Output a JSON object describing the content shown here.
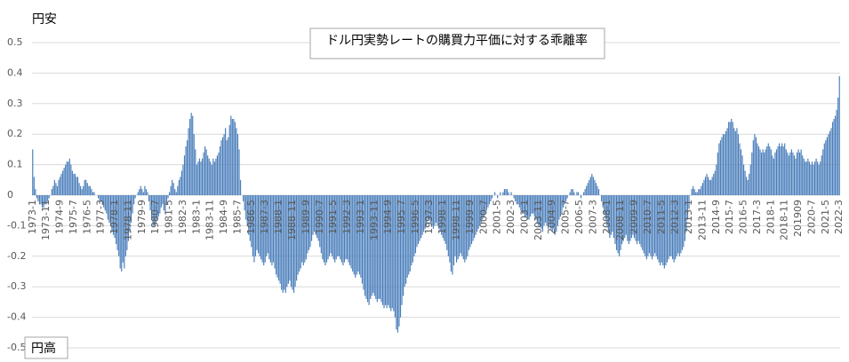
{
  "chart_data": {
    "type": "bar",
    "title": "ドル円実勢レートの購買力平価に対する乖離率",
    "annotations": [
      "円安",
      "円高"
    ],
    "color": "#4a7ebb",
    "ylim": [
      -0.5,
      0.5
    ],
    "yticks": [
      -0.5,
      -0.4,
      -0.3,
      -0.2,
      -0.1,
      0,
      0.1,
      0.2,
      0.3,
      0.4,
      0.5
    ],
    "grid": true,
    "categories": [
      "1973-1",
      null,
      null,
      null,
      null,
      null,
      null,
      null,
      null,
      null,
      "1973-11",
      null,
      null,
      null,
      null,
      null,
      null,
      null,
      null,
      null,
      "1974-9",
      null,
      null,
      null,
      null,
      null,
      null,
      null,
      null,
      null,
      "1975-7",
      null,
      null,
      null,
      null,
      null,
      null,
      null,
      null,
      null,
      "1976-5",
      null,
      null,
      null,
      null,
      null,
      null,
      null,
      null,
      null,
      "1977-3",
      null,
      null,
      null,
      null,
      null,
      null,
      null,
      null,
      null,
      "1978-1",
      null,
      null,
      null,
      null,
      null,
      null,
      null,
      null,
      null,
      "1978-11",
      null,
      null,
      null,
      null,
      null,
      null,
      null,
      null,
      null,
      "1979-9",
      null,
      null,
      null,
      null,
      null,
      null,
      null,
      null,
      null,
      "1980-7",
      null,
      null,
      null,
      null,
      null,
      null,
      null,
      null,
      null,
      "1981-5",
      null,
      null,
      null,
      null,
      null,
      null,
      null,
      null,
      null,
      "1982-3",
      null,
      null,
      null,
      null,
      null,
      null,
      null,
      null,
      null,
      "1983-1",
      null,
      null,
      null,
      null,
      null,
      null,
      null,
      null,
      null,
      "1983-11",
      null,
      null,
      null,
      null,
      null,
      null,
      null,
      null,
      null,
      "1984-9",
      null,
      null,
      null,
      null,
      null,
      null,
      null,
      null,
      null,
      "1985-7",
      null,
      null,
      null,
      null,
      null,
      null,
      null,
      null,
      null,
      "1986-5",
      null,
      null,
      null,
      null,
      null,
      null,
      null,
      null,
      null,
      "1987-3",
      null,
      null,
      null,
      null,
      null,
      null,
      null,
      null,
      null,
      "1988-1",
      null,
      null,
      null,
      null,
      null,
      null,
      null,
      null,
      null,
      "1988-11",
      null,
      null,
      null,
      null,
      null,
      null,
      null,
      null,
      null,
      "1989-9",
      null,
      null,
      null,
      null,
      null,
      null,
      null,
      null,
      null,
      "1990-7",
      null,
      null,
      null,
      null,
      null,
      null,
      null,
      null,
      null,
      "1991-5",
      null,
      null,
      null,
      null,
      null,
      null,
      null,
      null,
      null,
      "1992-3",
      null,
      null,
      null,
      null,
      null,
      null,
      null,
      null,
      null,
      "1993-1",
      null,
      null,
      null,
      null,
      null,
      null,
      null,
      null,
      null,
      "1993-11",
      null,
      null,
      null,
      null,
      null,
      null,
      null,
      null,
      null,
      "1994-9",
      null,
      null,
      null,
      null,
      null,
      null,
      null,
      null,
      null,
      "1995-7",
      null,
      null,
      null,
      null,
      null,
      null,
      null,
      null,
      null,
      "1996-5",
      null,
      null,
      null,
      null,
      null,
      null,
      null,
      null,
      null,
      "1997-3",
      null,
      null,
      null,
      null,
      null,
      null,
      null,
      null,
      null,
      "1998-1",
      null,
      null,
      null,
      null,
      null,
      null,
      null,
      null,
      null,
      "1998-11",
      null,
      null,
      null,
      null,
      null,
      null,
      null,
      null,
      null,
      "1999-9",
      null,
      null,
      null,
      null,
      null,
      null,
      null,
      null,
      null,
      "2000-7",
      null,
      null,
      null,
      null,
      null,
      null,
      null,
      null,
      null,
      "2001-5",
      null,
      null,
      null,
      null,
      null,
      null,
      null,
      null,
      null,
      "2002-3",
      null,
      null,
      null,
      null,
      null,
      null,
      null,
      null,
      null,
      "2003-1",
      null,
      null,
      null,
      null,
      null,
      null,
      null,
      null,
      null,
      "2003-11",
      null,
      null,
      null,
      null,
      null,
      null,
      null,
      null,
      null,
      "2004-9",
      null,
      null,
      null,
      null,
      null,
      null,
      null,
      null,
      null,
      "2005-7",
      null,
      null,
      null,
      null,
      null,
      null,
      null,
      null,
      null,
      "2006-5",
      null,
      null,
      null,
      null,
      null,
      null,
      null,
      null,
      null,
      "2007-3",
      null,
      null,
      null,
      null,
      null,
      null,
      null,
      null,
      null,
      "2008-1",
      null,
      null,
      null,
      null,
      null,
      null,
      null,
      null,
      null,
      "2008-11",
      null,
      null,
      null,
      null,
      null,
      null,
      null,
      null,
      null,
      "2009-9",
      null,
      null,
      null,
      null,
      null,
      null,
      null,
      null,
      null,
      "2010-7",
      null,
      null,
      null,
      null,
      null,
      null,
      null,
      null,
      null,
      "2011-5",
      null,
      null,
      null,
      null,
      null,
      null,
      null,
      null,
      null,
      "2012-3",
      null,
      null,
      null,
      null,
      null,
      null,
      null,
      null,
      null,
      "2013-1",
      null,
      null,
      null,
      null,
      null,
      null,
      null,
      null,
      null,
      "2013-11",
      null,
      null,
      null,
      null,
      null,
      null,
      null,
      null,
      null,
      "2014-9",
      null,
      null,
      null,
      null,
      null,
      null,
      null,
      null,
      null,
      "2015-7",
      null,
      null,
      null,
      null,
      null,
      null,
      null,
      null,
      null,
      "2016-5",
      null,
      null,
      null,
      null,
      null,
      null,
      null,
      null,
      null,
      "2017-3",
      null,
      null,
      null,
      null,
      null,
      null,
      null,
      null,
      null,
      "2018-1",
      null,
      null,
      null,
      null,
      null,
      null,
      null,
      null,
      null,
      "2018-11",
      null,
      null,
      null,
      null,
      null,
      null,
      null,
      null,
      null,
      "201909",
      null,
      null,
      null,
      null,
      null,
      null,
      null,
      null,
      null,
      "2020-7",
      null,
      null,
      null,
      null,
      null,
      null,
      null,
      null,
      null,
      "2021-5",
      null,
      null,
      null,
      null,
      null,
      null,
      null,
      null,
      null,
      "2022-3"
    ],
    "values": [
      0.15,
      0.06,
      0.02,
      -0.01,
      -0.02,
      -0.03,
      -0.03,
      -0.04,
      -0.04,
      -0.03,
      -0.03,
      -0.02,
      -0.01,
      0.0,
      0.02,
      0.03,
      0.05,
      0.04,
      0.03,
      0.05,
      0.06,
      0.07,
      0.08,
      0.09,
      0.1,
      0.11,
      0.11,
      0.12,
      0.1,
      0.08,
      0.07,
      0.07,
      0.06,
      0.06,
      0.04,
      0.03,
      0.02,
      0.03,
      0.05,
      0.05,
      0.04,
      0.03,
      0.03,
      0.02,
      0.01,
      0.01,
      0.0,
      0.0,
      -0.01,
      -0.02,
      -0.02,
      -0.03,
      -0.04,
      -0.05,
      -0.06,
      -0.08,
      -0.09,
      -0.1,
      -0.12,
      -0.13,
      -0.14,
      -0.16,
      -0.18,
      -0.2,
      -0.24,
      -0.25,
      -0.22,
      -0.24,
      -0.2,
      -0.18,
      -0.15,
      -0.12,
      -0.09,
      -0.06,
      -0.03,
      -0.01,
      0.0,
      0.01,
      0.02,
      0.03,
      0.02,
      0.01,
      0.03,
      0.02,
      0.01,
      -0.02,
      -0.05,
      -0.08,
      -0.1,
      -0.1,
      -0.09,
      -0.08,
      -0.07,
      -0.06,
      -0.04,
      -0.03,
      -0.05,
      -0.06,
      -0.03,
      -0.01,
      0.01,
      0.03,
      0.05,
      0.04,
      0.02,
      0.01,
      0.03,
      0.05,
      0.06,
      0.08,
      0.1,
      0.13,
      0.16,
      0.18,
      0.22,
      0.25,
      0.27,
      0.26,
      0.2,
      0.15,
      0.1,
      0.11,
      0.12,
      0.11,
      0.12,
      0.14,
      0.16,
      0.15,
      0.13,
      0.12,
      0.11,
      0.1,
      0.12,
      0.11,
      0.12,
      0.13,
      0.14,
      0.16,
      0.18,
      0.19,
      0.2,
      0.22,
      0.18,
      0.19,
      0.23,
      0.26,
      0.25,
      0.25,
      0.24,
      0.22,
      0.2,
      0.15,
      0.05,
      0.0,
      -0.02,
      -0.05,
      -0.08,
      -0.1,
      -0.13,
      -0.15,
      -0.17,
      -0.2,
      -0.22,
      -0.2,
      -0.18,
      -0.19,
      -0.2,
      -0.21,
      -0.22,
      -0.23,
      -0.22,
      -0.2,
      -0.19,
      -0.21,
      -0.22,
      -0.23,
      -0.22,
      -0.24,
      -0.26,
      -0.27,
      -0.28,
      -0.29,
      -0.31,
      -0.32,
      -0.31,
      -0.32,
      -0.3,
      -0.29,
      -0.28,
      -0.3,
      -0.31,
      -0.32,
      -0.3,
      -0.28,
      -0.26,
      -0.25,
      -0.24,
      -0.22,
      -0.23,
      -0.22,
      -0.21,
      -0.19,
      -0.18,
      -0.17,
      -0.15,
      -0.13,
      -0.12,
      -0.13,
      -0.14,
      -0.15,
      -0.17,
      -0.19,
      -0.21,
      -0.22,
      -0.23,
      -0.22,
      -0.21,
      -0.2,
      -0.19,
      -0.2,
      -0.21,
      -0.22,
      -0.21,
      -0.2,
      -0.2,
      -0.21,
      -0.22,
      -0.23,
      -0.22,
      -0.21,
      -0.21,
      -0.22,
      -0.23,
      -0.24,
      -0.25,
      -0.26,
      -0.27,
      -0.26,
      -0.25,
      -0.26,
      -0.27,
      -0.29,
      -0.31,
      -0.33,
      -0.34,
      -0.35,
      -0.36,
      -0.34,
      -0.33,
      -0.32,
      -0.33,
      -0.34,
      -0.35,
      -0.34,
      -0.34,
      -0.35,
      -0.36,
      -0.37,
      -0.36,
      -0.37,
      -0.36,
      -0.37,
      -0.38,
      -0.37,
      -0.38,
      -0.4,
      -0.44,
      -0.45,
      -0.43,
      -0.4,
      -0.36,
      -0.33,
      -0.3,
      -0.29,
      -0.27,
      -0.26,
      -0.25,
      -0.23,
      -0.22,
      -0.2,
      -0.19,
      -0.17,
      -0.16,
      -0.15,
      -0.14,
      -0.13,
      -0.12,
      -0.11,
      -0.1,
      -0.08,
      -0.08,
      -0.09,
      -0.1,
      -0.11,
      -0.1,
      -0.09,
      -0.1,
      -0.11,
      -0.12,
      -0.13,
      -0.14,
      -0.15,
      -0.16,
      -0.18,
      -0.2,
      -0.22,
      -0.25,
      -0.26,
      -0.23,
      -0.2,
      -0.22,
      -0.21,
      -0.2,
      -0.19,
      -0.2,
      -0.21,
      -0.22,
      -0.21,
      -0.2,
      -0.18,
      -0.17,
      -0.16,
      -0.15,
      -0.14,
      -0.13,
      -0.12,
      -0.11,
      -0.1,
      -0.09,
      -0.08,
      -0.07,
      -0.06,
      -0.05,
      -0.04,
      -0.03,
      -0.02,
      -0.01,
      0.0,
      0.01,
      0.0,
      -0.01,
      0.0,
      0.01,
      0.0,
      0.01,
      0.02,
      0.02,
      0.02,
      0.01,
      0.0,
      0.01,
      0.0,
      -0.01,
      -0.02,
      -0.03,
      -0.03,
      -0.04,
      -0.05,
      -0.06,
      -0.06,
      -0.07,
      -0.07,
      -0.08,
      -0.08,
      -0.07,
      -0.06,
      -0.06,
      -0.07,
      -0.08,
      -0.09,
      -0.1,
      -0.1,
      -0.11,
      -0.12,
      -0.1,
      -0.09,
      -0.1,
      -0.11,
      -0.1,
      -0.11,
      -0.12,
      -0.11,
      -0.13,
      -0.12,
      -0.1,
      -0.08,
      -0.07,
      -0.05,
      -0.04,
      -0.03,
      -0.02,
      -0.01,
      0.0,
      0.01,
      0.02,
      0.02,
      0.01,
      0.0,
      0.01,
      0.01,
      0.0,
      -0.01,
      0.0,
      0.01,
      0.02,
      0.03,
      0.04,
      0.05,
      0.06,
      0.07,
      0.06,
      0.05,
      0.04,
      0.03,
      0.02,
      0.0,
      -0.02,
      -0.04,
      -0.06,
      -0.08,
      -0.1,
      -0.12,
      -0.14,
      -0.13,
      -0.12,
      -0.14,
      -0.16,
      -0.18,
      -0.19,
      -0.2,
      -0.18,
      -0.16,
      -0.15,
      -0.14,
      -0.13,
      -0.15,
      -0.16,
      -0.15,
      -0.14,
      -0.13,
      -0.14,
      -0.15,
      -0.16,
      -0.15,
      -0.16,
      -0.17,
      -0.18,
      -0.19,
      -0.2,
      -0.21,
      -0.2,
      -0.19,
      -0.2,
      -0.21,
      -0.2,
      -0.19,
      -0.2,
      -0.21,
      -0.22,
      -0.23,
      -0.22,
      -0.23,
      -0.24,
      -0.23,
      -0.22,
      -0.21,
      -0.2,
      -0.2,
      -0.21,
      -0.22,
      -0.21,
      -0.2,
      -0.19,
      -0.2,
      -0.19,
      -0.18,
      -0.17,
      -0.15,
      -0.12,
      -0.08,
      -0.04,
      0.0,
      0.02,
      0.03,
      0.02,
      0.01,
      0.01,
      0.02,
      0.02,
      0.03,
      0.04,
      0.05,
      0.06,
      0.07,
      0.06,
      0.05,
      0.05,
      0.06,
      0.07,
      0.08,
      0.1,
      0.14,
      0.17,
      0.18,
      0.19,
      0.2,
      0.2,
      0.21,
      0.22,
      0.24,
      0.24,
      0.25,
      0.24,
      0.22,
      0.21,
      0.22,
      0.2,
      0.17,
      0.15,
      0.13,
      0.1,
      0.08,
      0.06,
      0.05,
      0.07,
      0.1,
      0.14,
      0.18,
      0.2,
      0.19,
      0.17,
      0.16,
      0.15,
      0.14,
      0.15,
      0.14,
      0.15,
      0.16,
      0.17,
      0.16,
      0.15,
      0.13,
      0.12,
      0.14,
      0.15,
      0.16,
      0.17,
      0.16,
      0.17,
      0.16,
      0.17,
      0.15,
      0.14,
      0.13,
      0.14,
      0.15,
      0.14,
      0.13,
      0.12,
      0.14,
      0.15,
      0.14,
      0.15,
      0.13,
      0.12,
      0.11,
      0.11,
      0.12,
      0.11,
      0.1,
      0.11,
      0.1,
      0.11,
      0.12,
      0.11,
      0.1,
      0.11,
      0.13,
      0.15,
      0.17,
      0.18,
      0.19,
      0.2,
      0.21,
      0.22,
      0.24,
      0.25,
      0.26,
      0.28,
      0.32,
      0.39
    ]
  }
}
